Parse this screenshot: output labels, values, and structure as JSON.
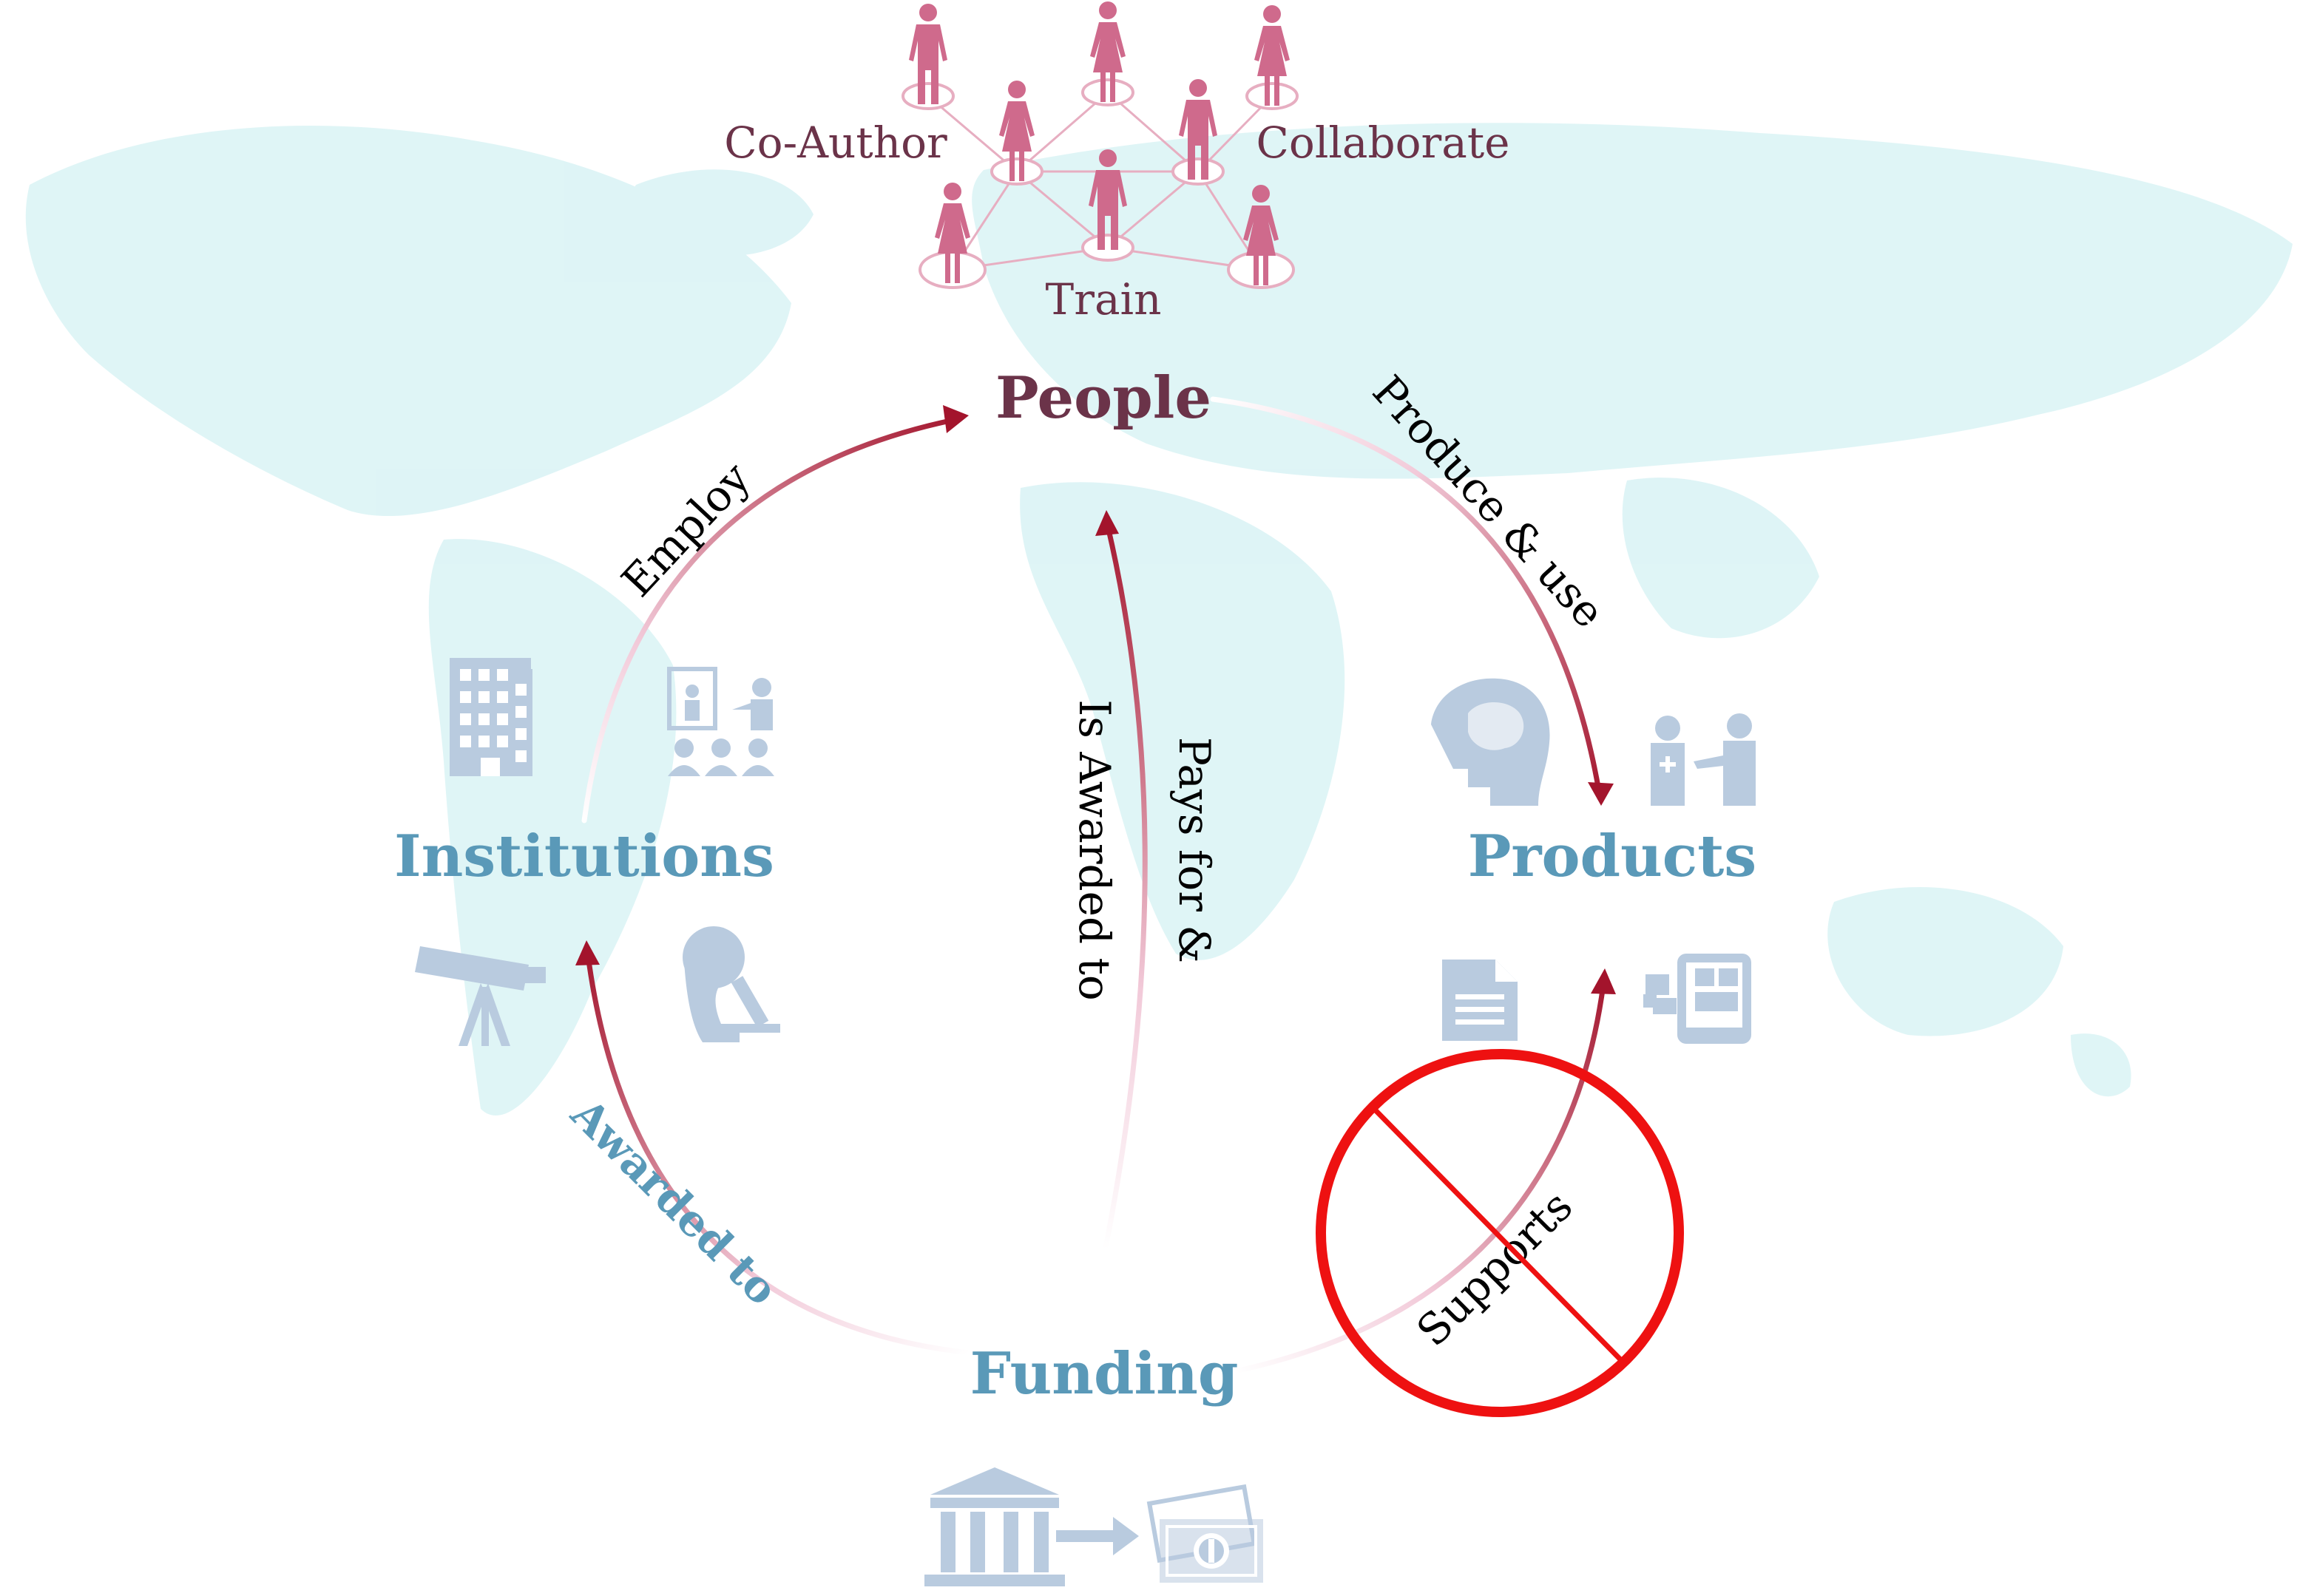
{
  "network": {
    "coauthor": "Co-Author",
    "collaborate": "Collaborate",
    "train": "Train"
  },
  "nodes": {
    "people": "People",
    "products": "Products",
    "funding": "Funding",
    "institutions": "Institutions"
  },
  "edges": {
    "employ": "Employ",
    "produce": "Produce & use",
    "pays": "Pays for &",
    "awarded_people": "Is Awarded to",
    "awarded_inst": "Awarded to",
    "supports": "Supports"
  },
  "icons": {
    "institutions": [
      "office-building-icon",
      "classroom-icon",
      "telescope-icon",
      "microscope-icon"
    ],
    "products": [
      "brain-icon",
      "doctor-patient-icon",
      "document-icon",
      "tablet-icon"
    ],
    "funding": [
      "bank-icon",
      "arrow-right-icon",
      "money-icon"
    ],
    "network": "person-icon"
  },
  "colors": {
    "people": "#6b3349",
    "node_blue": "#5a99b8",
    "arrow_dark": "#a3142c",
    "arrow_light": "#f2cad9",
    "person": "#cf6a8c",
    "network_line": "#e7aec1",
    "icon": "#b9cbdf",
    "no_sign": "#ee1111",
    "map": "#c4ecef"
  }
}
